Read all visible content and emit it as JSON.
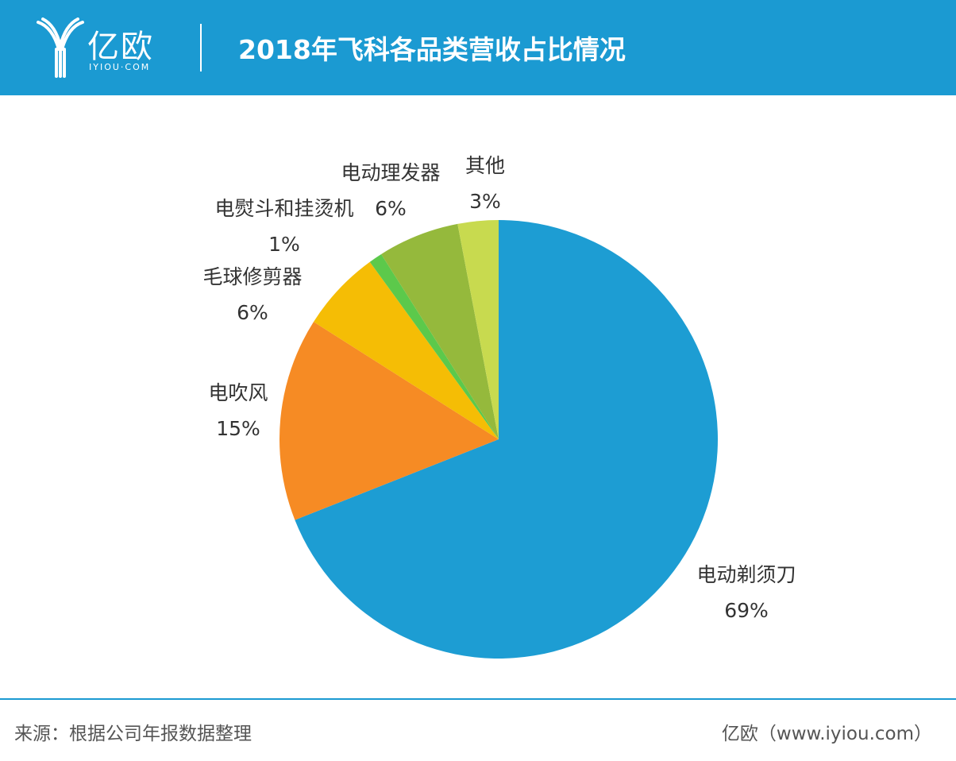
{
  "header": {
    "logo_text": "亿欧",
    "logo_sub": "IYIOU·COM",
    "title": "2018年飞科各品类营收占比情况"
  },
  "footer": {
    "source": "来源：根据公司年报数据整理",
    "brand": "亿欧（www.iyiou.com）"
  },
  "chart_data": {
    "type": "pie",
    "title": "2018年飞科各品类营收占比情况",
    "unit": "%",
    "start": "12 o'clock, clockwise",
    "slices": [
      {
        "name": "电动剃须刀",
        "value": 69,
        "label": "69%",
        "color": "#1d9dd3"
      },
      {
        "name": "电吹风",
        "value": 15,
        "label": "15%",
        "color": "#f68b24"
      },
      {
        "name": "毛球修剪器",
        "value": 6,
        "label": "6%",
        "color": "#f5bd05"
      },
      {
        "name": "电熨斗和挂烫机",
        "value": 1,
        "label": "1%",
        "color": "#5cc94b"
      },
      {
        "name": "电动理发器",
        "value": 6,
        "label": "6%",
        "color": "#95b93c"
      },
      {
        "name": "其他",
        "value": 3,
        "label": "3%",
        "color": "#c8da4f"
      }
    ]
  }
}
